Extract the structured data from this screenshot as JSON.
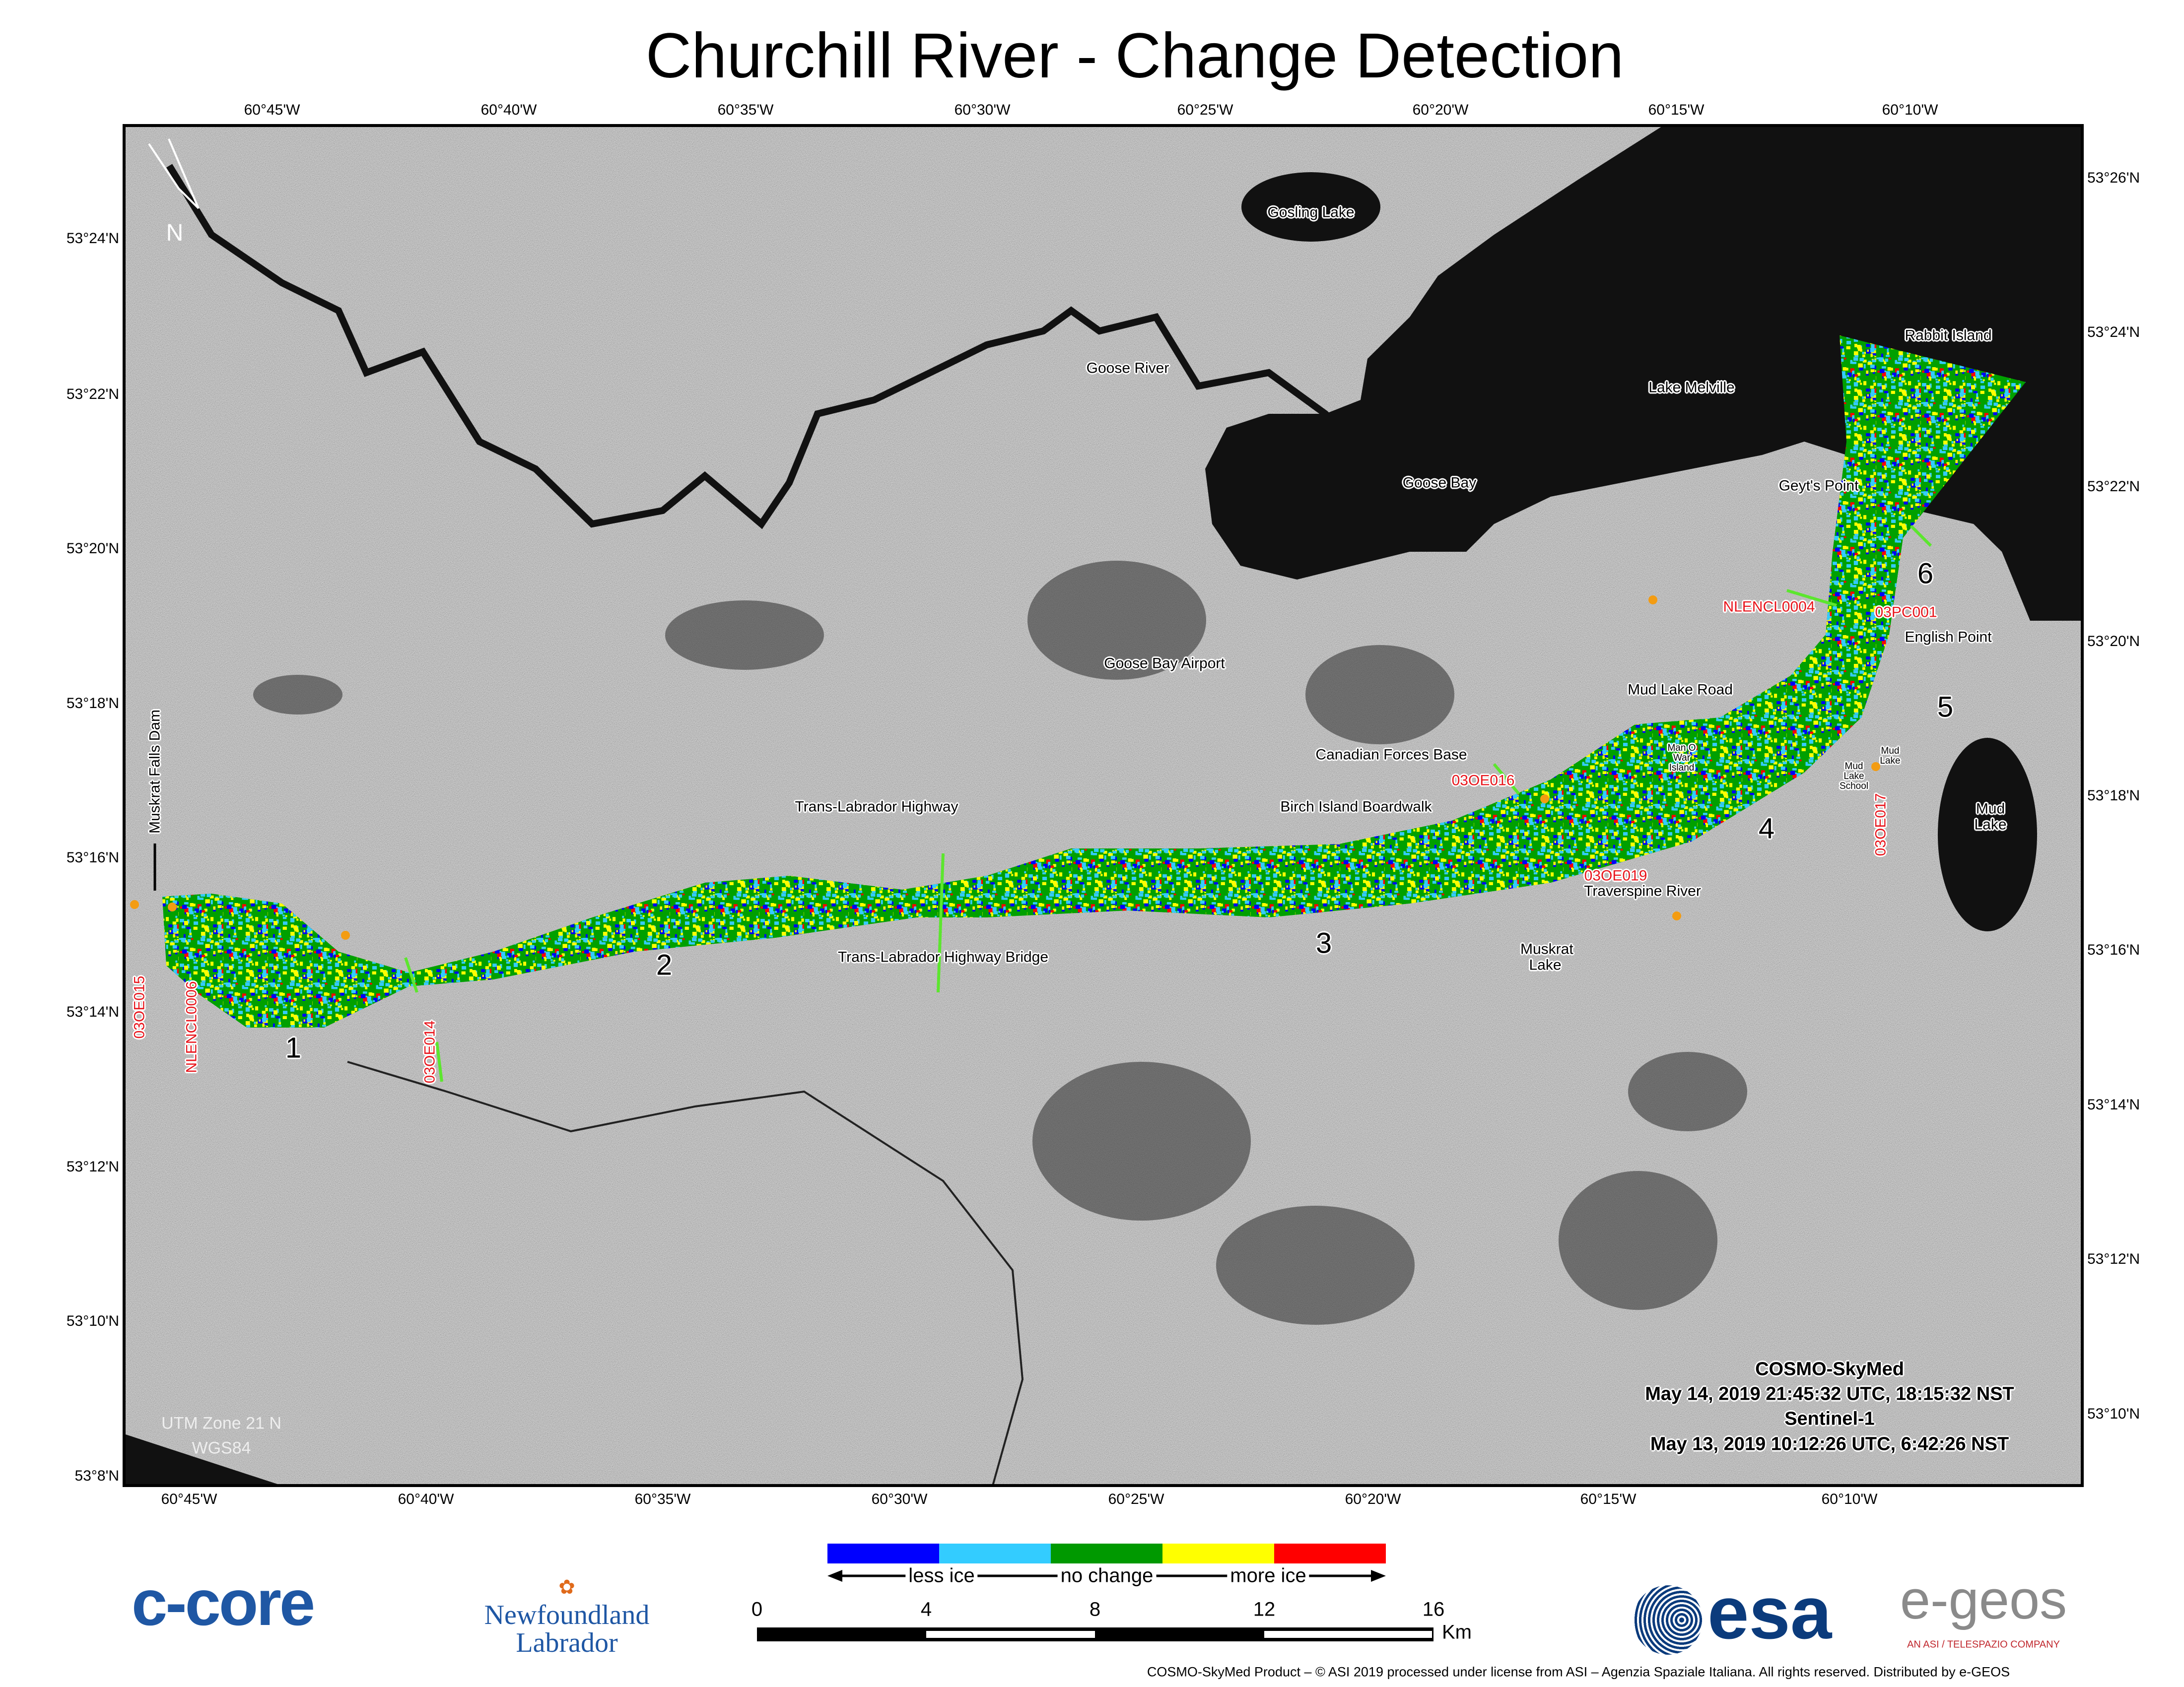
{
  "title": "Churchill River - Change Detection",
  "longitude_ticks_top": [
    "60°45'W",
    "60°40'W",
    "60°35'W",
    "60°30'W",
    "60°25'W",
    "60°20'W",
    "60°15'W",
    "60°10'W"
  ],
  "longitude_ticks_bottom": [
    "60°45'W",
    "60°40'W",
    "60°35'W",
    "60°30'W",
    "60°25'W",
    "60°20'W",
    "60°15'W",
    "60°10'W"
  ],
  "latitude_ticks_left": [
    "53°24'N",
    "53°22'N",
    "53°20'N",
    "53°18'N",
    "53°16'N",
    "53°14'N",
    "53°12'N",
    "53°10'N",
    "53°8'N"
  ],
  "latitude_ticks_right": [
    "53°26'N",
    "53°24'N",
    "53°22'N",
    "53°20'N",
    "53°18'N",
    "53°16'N",
    "53°14'N",
    "53°12'N",
    "53°10'N"
  ],
  "north_arrow": "N",
  "places": {
    "gosling_lake": "Gosling Lake",
    "goose_river": "Goose River",
    "lake_melville": "Lake Melville",
    "rabbit_island": "Rabbit Island",
    "goose_bay": "Goose Bay",
    "geyts_point": "Geyt's Point",
    "english_point": "English Point",
    "goose_bay_airport": "Goose Bay Airport",
    "mud_lake_road": "Mud Lake Road",
    "canadian_forces_base": "Canadian Forces Base",
    "man_o_war_island": "Man O War Island",
    "mud_lake_small": "Mud Lake",
    "mud_lake_school": "Mud Lake School",
    "mud_lake": "Mud Lake",
    "trans_labrador_highway": "Trans-Labrador Highway",
    "birch_island_boardwalk": "Birch Island Boardwalk",
    "traverspine_river": "Traverspine River",
    "muskrat_lake": "Muskrat Lake",
    "trans_labrador_highway_bridge": "Trans-Labrador Highway Bridge",
    "muskrat_falls_dam": "Muskrat Falls Dam"
  },
  "stations": [
    "NLENCL0004",
    "03PC001",
    "03OE016",
    "03OE017",
    "03OE019",
    "03OE015",
    "NLENCL0006",
    "03OE014"
  ],
  "zones": [
    "1",
    "2",
    "3",
    "4",
    "5",
    "6"
  ],
  "projection": {
    "zone": "UTM Zone 21 N",
    "datum": "WGS84"
  },
  "acquisition": {
    "sensor1": "COSMO-SkyMed",
    "date1": "May 14, 2019 21:45:32 UTC, 18:15:32 NST",
    "sensor2": "Sentinel-1",
    "date2": "May 13, 2019 10:12:26 UTC, 6:42:26 NST"
  },
  "legend": {
    "colors": [
      "#0000ff",
      "#33ccff",
      "#009900",
      "#ffff00",
      "#ff0000"
    ],
    "less_ice": "less ice",
    "no_change": "no change",
    "more_ice": "more ice"
  },
  "scale_bar": {
    "labels": [
      "0",
      "4",
      "8",
      "12",
      "16"
    ],
    "unit": "Km"
  },
  "logos": {
    "ccore": "c-core",
    "nl_line1": "Newfoundland",
    "nl_line2": "Labrador",
    "esa": "esa",
    "egeos": "e-geos",
    "egeos_tag": "AN ASI / TELESPAZIO COMPANY"
  },
  "credit": "COSMO-SkyMed Product – © ASI 2019 processed under license from ASI – Agenzia Spaziale Italiana. All rights reserved. Distributed by e-GEOS"
}
